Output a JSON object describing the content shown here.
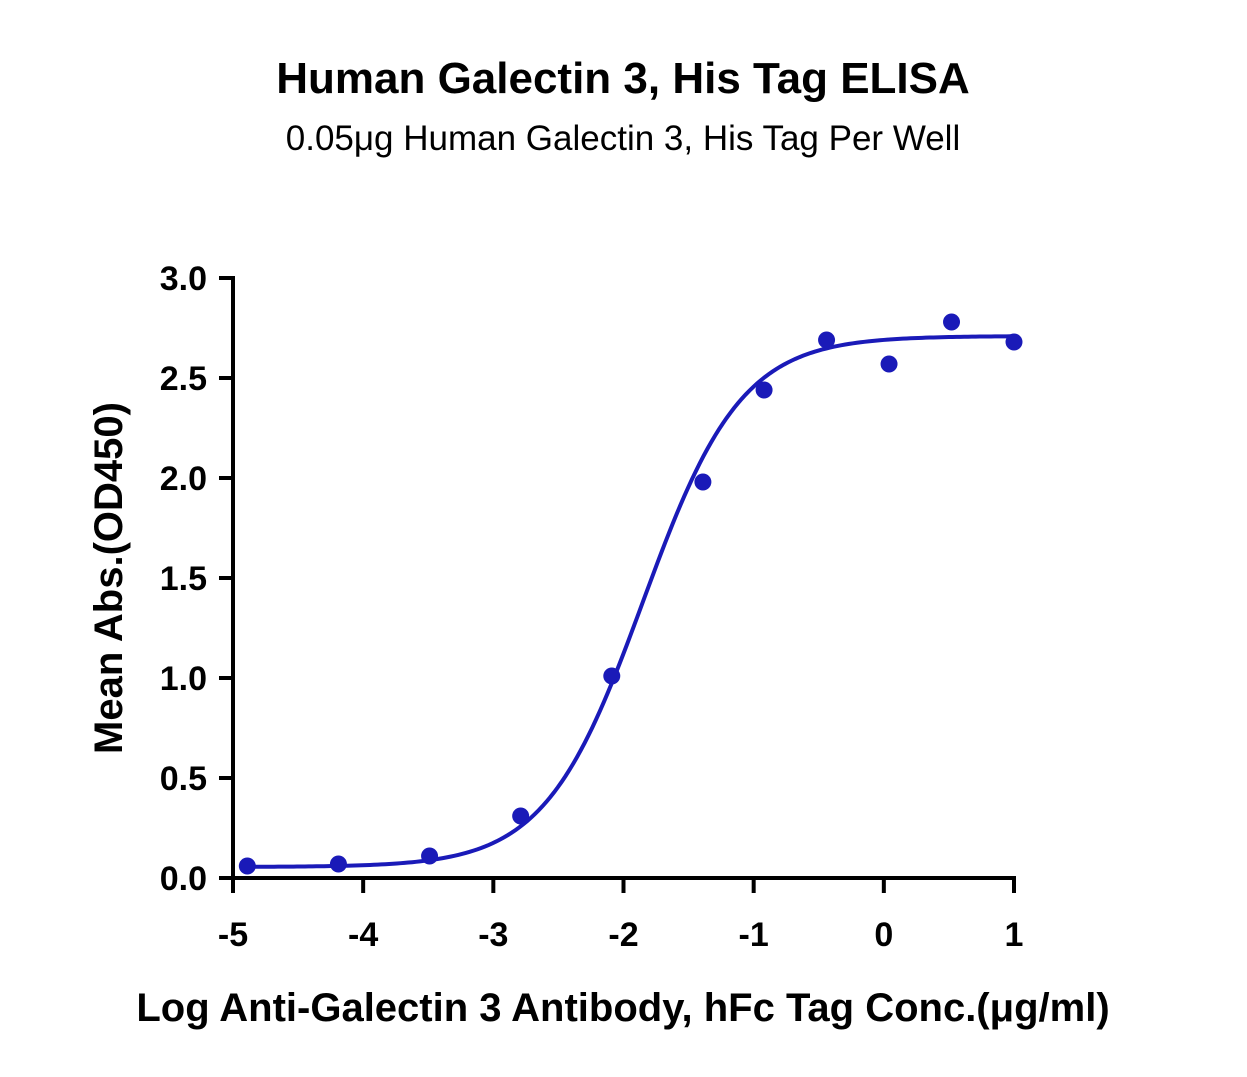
{
  "chart_data": {
    "type": "scatter",
    "title": "Human Galectin 3, His Tag ELISA",
    "subtitle": "0.05μg Human Galectin 3, His Tag Per Well",
    "xlabel": "Log Anti-Galectin 3 Antibody, hFc Tag Conc.(μg/ml)",
    "ylabel": "Mean Abs.(OD450)",
    "xlim": [
      -5,
      1
    ],
    "ylim": [
      0,
      3
    ],
    "x_ticks": [
      "-5",
      "-4",
      "-3",
      "-2",
      "-1",
      "0",
      "1"
    ],
    "y_ticks": [
      "0.0",
      "0.5",
      "1.0",
      "1.5",
      "2.0",
      "2.5",
      "3.0"
    ],
    "grid": false,
    "color": "#1a1ab8",
    "series": [
      {
        "x": [
          -4.89,
          -4.19,
          -3.49,
          -2.79,
          -2.09,
          -1.39,
          -0.92,
          -0.44,
          0.04,
          0.52,
          1.0
        ],
        "y": [
          0.06,
          0.07,
          0.11,
          0.31,
          1.01,
          1.98,
          2.44,
          2.69,
          2.57,
          2.78,
          2.68
        ]
      }
    ],
    "fit_curve": {
      "type": "4PL",
      "bottom": 0.055,
      "top": 2.71,
      "logEC50": -1.85,
      "hill": 1.15
    }
  }
}
